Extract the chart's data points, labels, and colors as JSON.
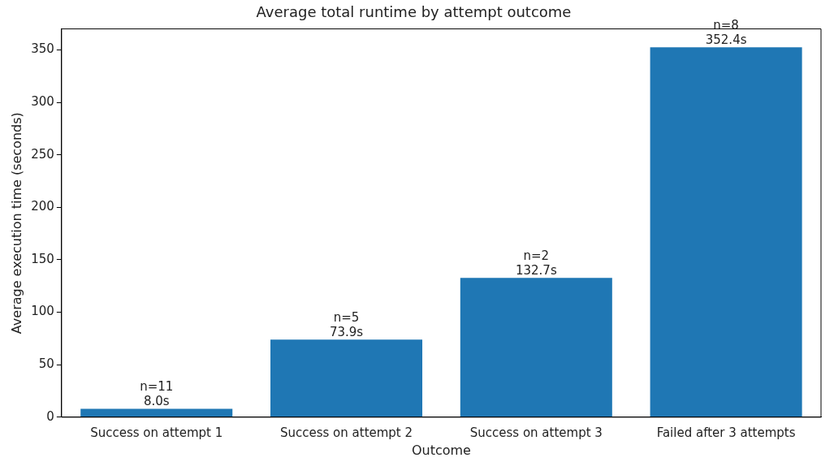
{
  "chart_data": {
    "type": "bar",
    "title": "Average total runtime by attempt outcome",
    "xlabel": "Outcome",
    "ylabel": "Average execution time (seconds)",
    "categories": [
      "Success on attempt 1",
      "Success on attempt 2",
      "Success on attempt 3",
      "Failed after 3 attempts"
    ],
    "values": [
      8.0,
      73.9,
      132.7,
      352.4
    ],
    "value_labels": [
      "8.0s",
      "73.9s",
      "132.7s",
      "352.4s"
    ],
    "annotations": [
      {
        "text": "n=11",
        "x": "Success on attempt 1",
        "y": 8.0
      },
      {
        "text": "n=5",
        "x": "Success on attempt 2",
        "y": 73.9
      },
      {
        "text": "n=2",
        "x": "Success on attempt 3",
        "y": 132.7
      },
      {
        "text": "n=8",
        "x": "Failed after 3 attempts",
        "y": 352.4
      }
    ],
    "color": "#1f77b4",
    "ylim": [
      0,
      370
    ],
    "yticks": [
      0,
      50,
      100,
      150,
      200,
      250,
      300,
      350
    ],
    "grid": false,
    "legend": false
  }
}
